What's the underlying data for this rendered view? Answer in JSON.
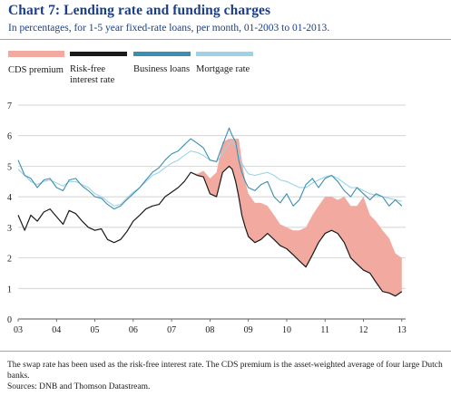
{
  "title": "Chart 7:  Lending rate and funding charges",
  "subtitle": "In percentages, for 1-5 year fixed-rate loans, per month, 01-2003 to 01-2013.",
  "legend": [
    {
      "label": "CDS premium",
      "color": "#f2aaa0",
      "kind": "area"
    },
    {
      "label": "Risk-free\ninterest rate",
      "color": "#1a1a1a",
      "kind": "line"
    },
    {
      "label": "Business loans",
      "color": "#3a8fb0",
      "kind": "line"
    },
    {
      "label": "Mortgage rate",
      "color": "#9ed2e6",
      "kind": "line"
    }
  ],
  "footnote": "The swap rate has been used as the risk-free interest rate. The CDS premium is the asset-weighted average of four large Dutch banks.",
  "source": "Sources: DNB and Thomson Datastream.",
  "chart_data": {
    "type": "line",
    "ylim": [
      0,
      7
    ],
    "yticks": [
      0,
      1,
      2,
      3,
      4,
      5,
      6,
      7
    ],
    "xlim": [
      2003,
      2013.1
    ],
    "xticks": [
      {
        "value": 2003,
        "label": "03"
      },
      {
        "value": 2004,
        "label": "04"
      },
      {
        "value": 2005,
        "label": "05"
      },
      {
        "value": 2006,
        "label": "06"
      },
      {
        "value": 2007,
        "label": "07"
      },
      {
        "value": 2008,
        "label": "08"
      },
      {
        "value": 2009,
        "label": "09"
      },
      {
        "value": 2010,
        "label": "10"
      },
      {
        "value": 2011,
        "label": "11"
      },
      {
        "value": 2012,
        "label": "12"
      },
      {
        "value": 2013,
        "label": "13"
      }
    ],
    "grid": "horizontal",
    "series": [
      {
        "name": "Risk-free interest rate",
        "color": "#1a1a1a",
        "points": [
          [
            2003.0,
            3.4
          ],
          [
            2003.17,
            2.9
          ],
          [
            2003.33,
            3.4
          ],
          [
            2003.5,
            3.2
          ],
          [
            2003.67,
            3.5
          ],
          [
            2003.83,
            3.6
          ],
          [
            2004.0,
            3.35
          ],
          [
            2004.17,
            3.1
          ],
          [
            2004.33,
            3.55
          ],
          [
            2004.5,
            3.45
          ],
          [
            2004.67,
            3.2
          ],
          [
            2004.83,
            3.0
          ],
          [
            2005.0,
            2.9
          ],
          [
            2005.17,
            2.95
          ],
          [
            2005.33,
            2.6
          ],
          [
            2005.5,
            2.5
          ],
          [
            2005.67,
            2.6
          ],
          [
            2005.83,
            2.85
          ],
          [
            2006.0,
            3.2
          ],
          [
            2006.17,
            3.4
          ],
          [
            2006.33,
            3.6
          ],
          [
            2006.5,
            3.7
          ],
          [
            2006.67,
            3.75
          ],
          [
            2006.83,
            4.0
          ],
          [
            2007.0,
            4.15
          ],
          [
            2007.17,
            4.3
          ],
          [
            2007.33,
            4.5
          ],
          [
            2007.5,
            4.8
          ],
          [
            2007.67,
            4.7
          ],
          [
            2007.83,
            4.65
          ],
          [
            2008.0,
            4.1
          ],
          [
            2008.17,
            4.0
          ],
          [
            2008.33,
            4.8
          ],
          [
            2008.5,
            5.0
          ],
          [
            2008.58,
            4.9
          ],
          [
            2008.67,
            4.5
          ],
          [
            2008.75,
            4.0
          ],
          [
            2008.83,
            3.4
          ],
          [
            2008.92,
            3.0
          ],
          [
            2009.0,
            2.7
          ],
          [
            2009.17,
            2.5
          ],
          [
            2009.33,
            2.6
          ],
          [
            2009.5,
            2.8
          ],
          [
            2009.67,
            2.6
          ],
          [
            2009.83,
            2.4
          ],
          [
            2010.0,
            2.3
          ],
          [
            2010.17,
            2.1
          ],
          [
            2010.33,
            1.9
          ],
          [
            2010.5,
            1.7
          ],
          [
            2010.67,
            2.1
          ],
          [
            2010.83,
            2.5
          ],
          [
            2011.0,
            2.8
          ],
          [
            2011.17,
            2.9
          ],
          [
            2011.33,
            2.8
          ],
          [
            2011.5,
            2.5
          ],
          [
            2011.67,
            2.0
          ],
          [
            2011.83,
            1.8
          ],
          [
            2012.0,
            1.6
          ],
          [
            2012.17,
            1.5
          ],
          [
            2012.33,
            1.2
          ],
          [
            2012.5,
            0.9
          ],
          [
            2012.67,
            0.85
          ],
          [
            2012.83,
            0.75
          ],
          [
            2013.0,
            0.9
          ]
        ]
      },
      {
        "name": "Business loans",
        "color": "#3a8fb0",
        "points": [
          [
            2003.0,
            5.2
          ],
          [
            2003.17,
            4.7
          ],
          [
            2003.33,
            4.6
          ],
          [
            2003.5,
            4.3
          ],
          [
            2003.67,
            4.55
          ],
          [
            2003.83,
            4.6
          ],
          [
            2004.0,
            4.3
          ],
          [
            2004.17,
            4.2
          ],
          [
            2004.33,
            4.55
          ],
          [
            2004.5,
            4.6
          ],
          [
            2004.67,
            4.35
          ],
          [
            2004.83,
            4.2
          ],
          [
            2005.0,
            4.0
          ],
          [
            2005.17,
            3.95
          ],
          [
            2005.33,
            3.75
          ],
          [
            2005.5,
            3.6
          ],
          [
            2005.67,
            3.7
          ],
          [
            2005.83,
            3.9
          ],
          [
            2006.0,
            4.1
          ],
          [
            2006.17,
            4.3
          ],
          [
            2006.33,
            4.55
          ],
          [
            2006.5,
            4.8
          ],
          [
            2006.67,
            4.95
          ],
          [
            2006.83,
            5.2
          ],
          [
            2007.0,
            5.4
          ],
          [
            2007.17,
            5.5
          ],
          [
            2007.33,
            5.7
          ],
          [
            2007.5,
            5.9
          ],
          [
            2007.67,
            5.75
          ],
          [
            2007.83,
            5.6
          ],
          [
            2008.0,
            5.2
          ],
          [
            2008.17,
            5.15
          ],
          [
            2008.33,
            5.7
          ],
          [
            2008.5,
            6.25
          ],
          [
            2008.58,
            6.0
          ],
          [
            2008.67,
            5.8
          ],
          [
            2008.75,
            5.2
          ],
          [
            2008.83,
            4.8
          ],
          [
            2008.92,
            4.5
          ],
          [
            2009.0,
            4.3
          ],
          [
            2009.17,
            4.2
          ],
          [
            2009.33,
            4.4
          ],
          [
            2009.5,
            4.5
          ],
          [
            2009.67,
            4.0
          ],
          [
            2009.83,
            3.8
          ],
          [
            2010.0,
            4.1
          ],
          [
            2010.17,
            3.7
          ],
          [
            2010.33,
            3.9
          ],
          [
            2010.5,
            4.4
          ],
          [
            2010.67,
            4.6
          ],
          [
            2010.83,
            4.3
          ],
          [
            2011.0,
            4.6
          ],
          [
            2011.17,
            4.7
          ],
          [
            2011.33,
            4.5
          ],
          [
            2011.5,
            4.2
          ],
          [
            2011.67,
            4.0
          ],
          [
            2011.83,
            4.3
          ],
          [
            2012.0,
            4.1
          ],
          [
            2012.17,
            3.9
          ],
          [
            2012.33,
            4.1
          ],
          [
            2012.5,
            4.0
          ],
          [
            2012.67,
            3.7
          ],
          [
            2012.83,
            3.9
          ],
          [
            2013.0,
            3.7
          ]
        ]
      },
      {
        "name": "Mortgage rate",
        "color": "#9ed2e6",
        "points": [
          [
            2003.0,
            4.9
          ],
          [
            2003.17,
            4.7
          ],
          [
            2003.33,
            4.5
          ],
          [
            2003.5,
            4.4
          ],
          [
            2003.67,
            4.5
          ],
          [
            2003.83,
            4.55
          ],
          [
            2004.0,
            4.45
          ],
          [
            2004.17,
            4.35
          ],
          [
            2004.33,
            4.5
          ],
          [
            2004.5,
            4.5
          ],
          [
            2004.67,
            4.4
          ],
          [
            2004.83,
            4.3
          ],
          [
            2005.0,
            4.1
          ],
          [
            2005.17,
            4.0
          ],
          [
            2005.33,
            3.85
          ],
          [
            2005.5,
            3.7
          ],
          [
            2005.67,
            3.75
          ],
          [
            2005.83,
            3.95
          ],
          [
            2006.0,
            4.15
          ],
          [
            2006.17,
            4.3
          ],
          [
            2006.33,
            4.5
          ],
          [
            2006.5,
            4.7
          ],
          [
            2006.67,
            4.8
          ],
          [
            2006.83,
            4.95
          ],
          [
            2007.0,
            5.1
          ],
          [
            2007.17,
            5.2
          ],
          [
            2007.33,
            5.35
          ],
          [
            2007.5,
            5.5
          ],
          [
            2007.67,
            5.45
          ],
          [
            2007.83,
            5.35
          ],
          [
            2008.0,
            5.2
          ],
          [
            2008.17,
            5.15
          ],
          [
            2008.33,
            5.4
          ],
          [
            2008.5,
            5.75
          ],
          [
            2008.58,
            5.8
          ],
          [
            2008.67,
            5.65
          ],
          [
            2008.75,
            5.4
          ],
          [
            2008.83,
            5.1
          ],
          [
            2008.92,
            4.9
          ],
          [
            2009.0,
            4.75
          ],
          [
            2009.17,
            4.7
          ],
          [
            2009.33,
            4.75
          ],
          [
            2009.5,
            4.8
          ],
          [
            2009.67,
            4.7
          ],
          [
            2009.83,
            4.55
          ],
          [
            2010.0,
            4.5
          ],
          [
            2010.17,
            4.4
          ],
          [
            2010.33,
            4.3
          ],
          [
            2010.5,
            4.3
          ],
          [
            2010.67,
            4.45
          ],
          [
            2010.83,
            4.55
          ],
          [
            2011.0,
            4.65
          ],
          [
            2011.17,
            4.7
          ],
          [
            2011.33,
            4.6
          ],
          [
            2011.5,
            4.45
          ],
          [
            2011.67,
            4.3
          ],
          [
            2011.83,
            4.3
          ],
          [
            2012.0,
            4.2
          ],
          [
            2012.17,
            4.1
          ],
          [
            2012.33,
            4.05
          ],
          [
            2012.5,
            4.0
          ],
          [
            2012.67,
            3.95
          ],
          [
            2012.83,
            3.9
          ],
          [
            2013.0,
            3.85
          ]
        ]
      },
      {
        "name": "CDS premium",
        "color": "#f2aaa0",
        "kind": "area-on-risk-free",
        "points": [
          [
            2003.0,
            0.0
          ],
          [
            2007.5,
            0.0
          ],
          [
            2007.67,
            0.05
          ],
          [
            2007.83,
            0.2
          ],
          [
            2008.0,
            0.5
          ],
          [
            2008.17,
            0.8
          ],
          [
            2008.33,
            1.0
          ],
          [
            2008.5,
            0.9
          ],
          [
            2008.58,
            1.0
          ],
          [
            2008.67,
            1.4
          ],
          [
            2008.75,
            1.9
          ],
          [
            2008.83,
            1.8
          ],
          [
            2008.92,
            1.5
          ],
          [
            2009.0,
            1.4
          ],
          [
            2009.17,
            1.3
          ],
          [
            2009.33,
            1.2
          ],
          [
            2009.5,
            0.9
          ],
          [
            2009.67,
            0.8
          ],
          [
            2009.83,
            0.7
          ],
          [
            2010.0,
            0.7
          ],
          [
            2010.17,
            0.8
          ],
          [
            2010.33,
            1.0
          ],
          [
            2010.5,
            1.3
          ],
          [
            2010.67,
            1.3
          ],
          [
            2010.83,
            1.2
          ],
          [
            2011.0,
            1.2
          ],
          [
            2011.17,
            1.1
          ],
          [
            2011.33,
            1.1
          ],
          [
            2011.5,
            1.5
          ],
          [
            2011.67,
            1.7
          ],
          [
            2011.83,
            1.9
          ],
          [
            2012.0,
            2.4
          ],
          [
            2012.17,
            1.9
          ],
          [
            2012.33,
            2.0
          ],
          [
            2012.5,
            2.0
          ],
          [
            2012.67,
            1.8
          ],
          [
            2012.83,
            1.4
          ],
          [
            2013.0,
            1.1
          ]
        ]
      }
    ]
  }
}
